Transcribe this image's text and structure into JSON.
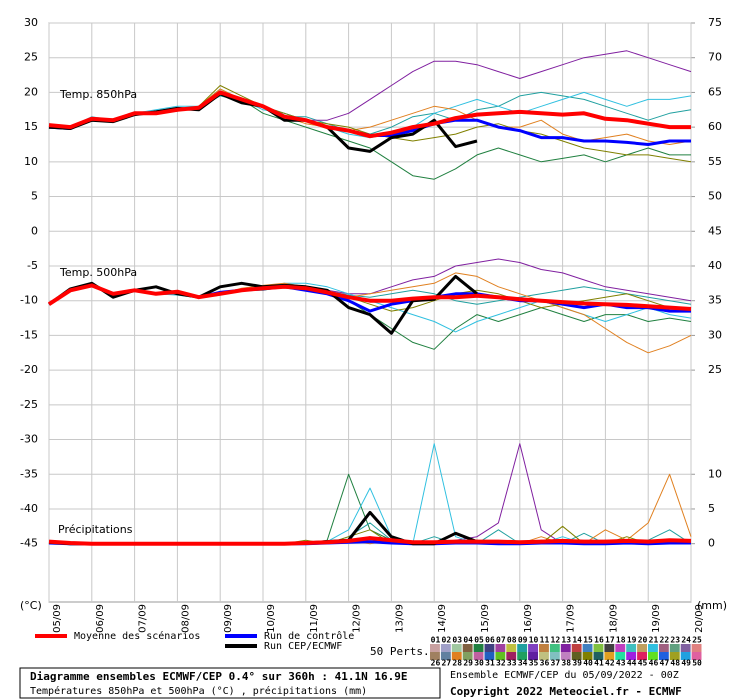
{
  "chart_data": {
    "type": "line",
    "title": "Diagramme ensembles ECMWF/CEP 0.4° sur 360h : 41.1N 16.9E",
    "subtitle": "Températures 850hPa et 500hPa (°C) , précipitations (mm)",
    "run_info": "Ensemble ECMWF/CEP du 05/09/2022 - 00Z",
    "copyright": "Copyright 2022 Meteociel.fr - ECMWF",
    "panel_850": "Temp. 850hPa",
    "panel_500": "Temp. 500hPa",
    "panel_precip": "Précipitations",
    "ylabel": "(°C)",
    "y2label": "(mm)",
    "perts_label": "50 Perts.",
    "categories": [
      "05/09",
      "06/09",
      "07/09",
      "08/09",
      "09/09",
      "10/09",
      "11/09",
      "12/09",
      "13/09",
      "14/09",
      "15/09",
      "16/09",
      "17/09",
      "18/09",
      "19/09",
      "20/09"
    ],
    "ylim": [
      -53.4,
      30
    ],
    "yticks": [
      30,
      25,
      20,
      15,
      10,
      5,
      0,
      -5,
      -10,
      -15,
      -20,
      -25,
      -30,
      -35,
      -40,
      -45
    ],
    "y2lim": [
      -8.4,
      75
    ],
    "y2ticks": [
      75,
      70,
      65,
      60,
      55,
      50,
      45,
      40,
      35,
      30,
      25,
      10,
      5,
      0
    ],
    "grid": true,
    "series": [
      {
        "name": "Moyenne des scénarios",
        "color": "#ff0000",
        "width": 4,
        "t850": [
          15.3,
          15,
          16.2,
          16,
          17,
          17,
          17.5,
          17.8,
          20,
          19,
          18,
          16.5,
          16,
          15,
          14.5,
          13.7,
          14.2,
          15,
          15.5,
          16.3,
          16.8,
          17,
          17.2,
          17,
          16.8,
          17,
          16.2,
          16,
          15.5,
          15,
          15
        ],
        "t500": [
          -10.5,
          -8.5,
          -7.8,
          -9,
          -8.5,
          -9,
          -8.7,
          -9.5,
          -9,
          -8.5,
          -8.2,
          -8,
          -8.2,
          -8.8,
          -9.5,
          -10,
          -10,
          -9.7,
          -9.5,
          -9.5,
          -9.3,
          -9.5,
          -9.8,
          -10,
          -10.2,
          -10.4,
          -10.5,
          -10.6,
          -10.8,
          -11,
          -11.2
        ],
        "precip": [
          0.3,
          0.1,
          0,
          0,
          0,
          0,
          0,
          0,
          0,
          0,
          0,
          0,
          0.1,
          0.2,
          0.4,
          0.8,
          0.5,
          0.2,
          0.2,
          0.3,
          0.3,
          0.3,
          0.2,
          0.3,
          0.4,
          0.3,
          0.3,
          0.4,
          0.3,
          0.5,
          0.4
        ]
      },
      {
        "name": "Run de contrôle",
        "color": "#0000ff",
        "width": 3,
        "t850": [
          15,
          14.8,
          16.2,
          16,
          17,
          17,
          17.5,
          17.8,
          20,
          19,
          18,
          16.5,
          16,
          15,
          14.5,
          13.8,
          13.8,
          14.5,
          15.5,
          16,
          16,
          15,
          14.5,
          13.5,
          13.5,
          13,
          13,
          12.8,
          12.5,
          13,
          13
        ],
        "t500": [
          -10.5,
          -8.5,
          -7.8,
          -9,
          -8.5,
          -9,
          -8.8,
          -9.5,
          -8.8,
          -8.5,
          -8.3,
          -8,
          -8.5,
          -9,
          -10,
          -11.5,
          -10.5,
          -10,
          -9.5,
          -9,
          -9,
          -9.5,
          -10,
          -10,
          -10.5,
          -11,
          -10.5,
          -11,
          -11,
          -11.5,
          -11.5
        ],
        "precip": [
          0.1,
          0,
          0,
          0,
          0,
          0,
          0,
          0,
          0,
          0,
          0,
          0,
          0,
          0.1,
          0.2,
          0.3,
          0.1,
          0,
          0,
          0.1,
          0.1,
          0,
          0,
          0.1,
          0.1,
          0,
          0,
          0.1,
          0,
          0.1,
          0.1
        ]
      },
      {
        "name": "Run CEP/ECMWF",
        "color": "#000000",
        "width": 3,
        "t850": [
          15,
          14.8,
          16,
          15.8,
          16.8,
          17.2,
          17.7,
          17.5,
          19.8,
          18.5,
          18,
          16,
          16,
          15,
          12,
          11.5,
          13.5,
          14,
          16,
          12.2,
          13,
          null,
          null,
          null,
          null,
          null,
          null,
          null,
          null,
          null,
          null
        ],
        "t500": [
          -10.5,
          -8.3,
          -7.5,
          -9.5,
          -8.5,
          -8,
          -9,
          -9.5,
          -8,
          -7.5,
          -8,
          -7.8,
          -8,
          -8.5,
          -11,
          -12,
          -14.7,
          -10,
          -9.8,
          -6.5,
          -9,
          null,
          null,
          null,
          null,
          null,
          null,
          null,
          null,
          null,
          null
        ],
        "precip": [
          0.2,
          0,
          0,
          0,
          0,
          0,
          0,
          0,
          0,
          0,
          0,
          0,
          0.1,
          0.3,
          0.5,
          4.5,
          1,
          0,
          0,
          1.5,
          0.3,
          null,
          null,
          null,
          null,
          null,
          null,
          null,
          null,
          null,
          null
        ]
      }
    ],
    "perturbations": [
      {
        "name": "01",
        "color": "#c8a0a0"
      },
      {
        "name": "02",
        "color": "#a0a0c8"
      },
      {
        "name": "03",
        "color": "#a0c8a0"
      },
      {
        "name": "04",
        "color": "#806040"
      },
      {
        "name": "05",
        "color": "#208040",
        "t850": [
          15,
          14.8,
          16,
          16,
          17,
          17,
          17.5,
          17.5,
          20,
          19,
          17,
          16,
          15,
          14,
          13,
          12,
          10,
          8,
          7.5,
          9,
          11,
          12,
          11,
          10,
          10.5,
          11,
          10,
          11,
          12,
          11,
          11
        ],
        "t500": [
          -10.5,
          -8.5,
          -7.5,
          -9,
          -8.5,
          -9,
          -9,
          -9.5,
          -9,
          -8.5,
          -8.5,
          -8,
          -8.5,
          -9,
          -10,
          -12,
          -14,
          -16,
          -17,
          -14,
          -12,
          -13,
          -12,
          -11,
          -12,
          -13,
          -12,
          -12,
          -13,
          -12.5,
          -13
        ],
        "precip": [
          0,
          0,
          0,
          0,
          0,
          0,
          0,
          0,
          0,
          0,
          0,
          0,
          0,
          0.5,
          10,
          2,
          0.5,
          0,
          0,
          0.3,
          0,
          0,
          0,
          0.5,
          0,
          0,
          0.3,
          0,
          0,
          0,
          0
        ]
      },
      {
        "name": "06",
        "color": "#404080"
      },
      {
        "name": "07",
        "color": "#a040a0"
      },
      {
        "name": "08",
        "color": "#c0c040"
      },
      {
        "name": "09",
        "color": "#20a0a0",
        "t850": [
          15.2,
          15,
          16.3,
          16,
          17.2,
          17,
          17.6,
          17.8,
          19.5,
          18.8,
          17.8,
          16.5,
          16.5,
          15.5,
          14.5,
          14,
          15,
          16.5,
          17,
          16,
          17.5,
          18,
          19.5,
          20,
          19.5,
          19,
          18,
          17,
          16,
          17,
          17.5
        ],
        "t500": [
          -10.5,
          -8.5,
          -7.5,
          -9,
          -8.5,
          -9,
          -9,
          -9.5,
          -9,
          -8.5,
          -8.2,
          -7.9,
          -8.1,
          -8.6,
          -9.2,
          -9.5,
          -9,
          -8.5,
          -9,
          -10,
          -10.5,
          -10,
          -9.5,
          -9,
          -8.5,
          -8,
          -8.5,
          -9,
          -9.5,
          -10,
          -10.5
        ],
        "precip": [
          0,
          0,
          0,
          0,
          0,
          0,
          0,
          0,
          0,
          0,
          0,
          0,
          0,
          0,
          1,
          3,
          0.5,
          0,
          1,
          0,
          0,
          2,
          0,
          0,
          0,
          1.5,
          0,
          0,
          0.5,
          2,
          0
        ]
      },
      {
        "name": "10",
        "color": "#8040c0"
      },
      {
        "name": "11",
        "color": "#c08040"
      },
      {
        "name": "12",
        "color": "#40c080"
      },
      {
        "name": "13",
        "color": "#8020a0",
        "t850": [
          15,
          15,
          16,
          16,
          17,
          17,
          17.5,
          18,
          20,
          19,
          18,
          17,
          16,
          16,
          17,
          19,
          21,
          23,
          24.5,
          24.5,
          24,
          23,
          22,
          23,
          24,
          25,
          25.5,
          26,
          25,
          24,
          23
        ],
        "t500": [
          -10.5,
          -8.5,
          -7.5,
          -9,
          -8.5,
          -9,
          -9,
          -9.5,
          -9,
          -8.5,
          -8,
          -7.8,
          -8,
          -8.5,
          -9,
          -9,
          -8,
          -7,
          -6.5,
          -5,
          -4.5,
          -4,
          -4.5,
          -5.5,
          -6,
          -7,
          -8,
          -8.5,
          -9,
          -9.5,
          -10
        ],
        "precip": [
          0,
          0,
          0,
          0,
          0,
          0,
          0,
          0,
          0,
          0,
          0,
          0,
          0,
          0,
          0.5,
          1,
          0,
          0,
          0,
          0.5,
          1,
          3,
          14.4,
          2,
          0,
          0,
          0.5,
          0,
          0,
          0,
          0
        ]
      },
      {
        "name": "14",
        "color": "#c04040"
      },
      {
        "name": "15",
        "color": "#4080c0"
      },
      {
        "name": "16",
        "color": "#80c040"
      },
      {
        "name": "17",
        "color": "#404040"
      },
      {
        "name": "18",
        "color": "#c040c0"
      },
      {
        "name": "19",
        "color": "#40c0c0"
      },
      {
        "name": "20",
        "color": "#c0a060"
      },
      {
        "name": "21",
        "color": "#30c0e0",
        "t850": [
          15.5,
          15,
          16.5,
          16,
          17,
          17.5,
          18,
          18,
          20.5,
          19,
          17.5,
          17,
          16,
          15,
          14,
          13.5,
          14,
          15,
          17,
          18,
          19,
          18,
          17,
          18,
          19,
          20,
          19,
          18,
          19,
          19,
          19.5
        ],
        "t500": [
          -10.5,
          -8.7,
          -7.7,
          -9.2,
          -8.7,
          -9,
          -9.2,
          -9.6,
          -9.2,
          -8.5,
          -8,
          -7.5,
          -7.5,
          -8,
          -9,
          -10,
          -11,
          -12,
          -13,
          -14.5,
          -13,
          -12,
          -11,
          -10,
          -11,
          -12,
          -13,
          -12,
          -11,
          -12,
          -12.5
        ],
        "precip": [
          0,
          0,
          0,
          0,
          0,
          0,
          0,
          0,
          0,
          0,
          0,
          0,
          0,
          0.3,
          2,
          8,
          1,
          0,
          14.4,
          1,
          0,
          0,
          0,
          0,
          1,
          0,
          0,
          0,
          0,
          0,
          0
        ]
      },
      {
        "name": "22",
        "color": "#a06080"
      },
      {
        "name": "23",
        "color": "#60a080"
      },
      {
        "name": "24",
        "color": "#8060a0"
      },
      {
        "name": "25",
        "color": "#e08080"
      },
      {
        "name": "26",
        "color": "#a08060"
      },
      {
        "name": "27",
        "color": "#6080a0"
      },
      {
        "name": "28",
        "color": "#e08020",
        "t850": [
          14.8,
          15,
          16,
          15.8,
          17,
          17,
          17.3,
          18,
          20.5,
          19,
          18,
          16.5,
          15.5,
          15,
          14.5,
          15,
          16,
          17,
          18,
          17.5,
          16,
          15,
          15,
          16,
          14,
          13,
          13.5,
          14,
          13,
          12.5,
          13
        ],
        "t500": [
          -10.5,
          -8.4,
          -7.6,
          -9,
          -8.6,
          -9.1,
          -9,
          -9.5,
          -9,
          -8.2,
          -7.8,
          -7.5,
          -8,
          -8.5,
          -9.5,
          -9,
          -8.5,
          -8,
          -7.5,
          -6,
          -6.5,
          -8,
          -9,
          -10,
          -11,
          -12,
          -14,
          -16,
          -17.5,
          -16.5,
          -15
        ],
        "precip": [
          0,
          0,
          0,
          0,
          0,
          0,
          0,
          0,
          0,
          0,
          0,
          0,
          0,
          0,
          0.5,
          0,
          0.5,
          0,
          0,
          0,
          0.5,
          0,
          0,
          1,
          0,
          0,
          2,
          0.5,
          3,
          10,
          1
        ]
      },
      {
        "name": "29",
        "color": "#80a060"
      },
      {
        "name": "30",
        "color": "#c060a0"
      },
      {
        "name": "31",
        "color": "#2060c0"
      },
      {
        "name": "32",
        "color": "#60c020"
      },
      {
        "name": "33",
        "color": "#a02060"
      },
      {
        "name": "34",
        "color": "#20a060"
      },
      {
        "name": "35",
        "color": "#6020a0"
      },
      {
        "name": "36",
        "color": "#c0c080"
      },
      {
        "name": "37",
        "color": "#80c0c0"
      },
      {
        "name": "38",
        "color": "#c080c0"
      },
      {
        "name": "39",
        "color": "#606020"
      },
      {
        "name": "40",
        "color": "#808000",
        "t850": [
          15,
          15.2,
          16,
          16.2,
          16.8,
          17.2,
          17.5,
          18,
          21,
          19.5,
          18,
          17,
          16,
          15.5,
          15,
          14,
          13.5,
          13,
          13.5,
          14,
          15,
          15.5,
          14.5,
          14,
          13,
          12,
          11.5,
          11,
          11,
          10.5,
          10
        ],
        "t500": [
          -10.5,
          -8.6,
          -7.4,
          -9.1,
          -8.4,
          -8.9,
          -8.8,
          -9.4,
          -9.1,
          -8.6,
          -8.3,
          -8,
          -8.2,
          -8.8,
          -9.5,
          -10.5,
          -11.5,
          -11,
          -10,
          -9,
          -8.5,
          -9,
          -10,
          -11,
          -10.5,
          -10,
          -9.5,
          -9,
          -10,
          -11,
          -11.5
        ],
        "precip": [
          0,
          0,
          0,
          0,
          0,
          0,
          0,
          0,
          0,
          0,
          0,
          0,
          0.5,
          0,
          1,
          2,
          0,
          0,
          0,
          0,
          0.5,
          0,
          0,
          0,
          2.5,
          0,
          0,
          1,
          0,
          0,
          0
        ]
      },
      {
        "name": "41",
        "color": "#206060"
      },
      {
        "name": "42",
        "color": "#e0a020"
      },
      {
        "name": "43",
        "color": "#20e0a0"
      },
      {
        "name": "44",
        "color": "#a020e0"
      },
      {
        "name": "45",
        "color": "#e02060"
      },
      {
        "name": "46",
        "color": "#60e020"
      },
      {
        "name": "47",
        "color": "#2060e0"
      },
      {
        "name": "48",
        "color": "#a0a020"
      },
      {
        "name": "49",
        "color": "#20a0e0"
      },
      {
        "name": "50",
        "color": "#e060a0"
      }
    ]
  }
}
